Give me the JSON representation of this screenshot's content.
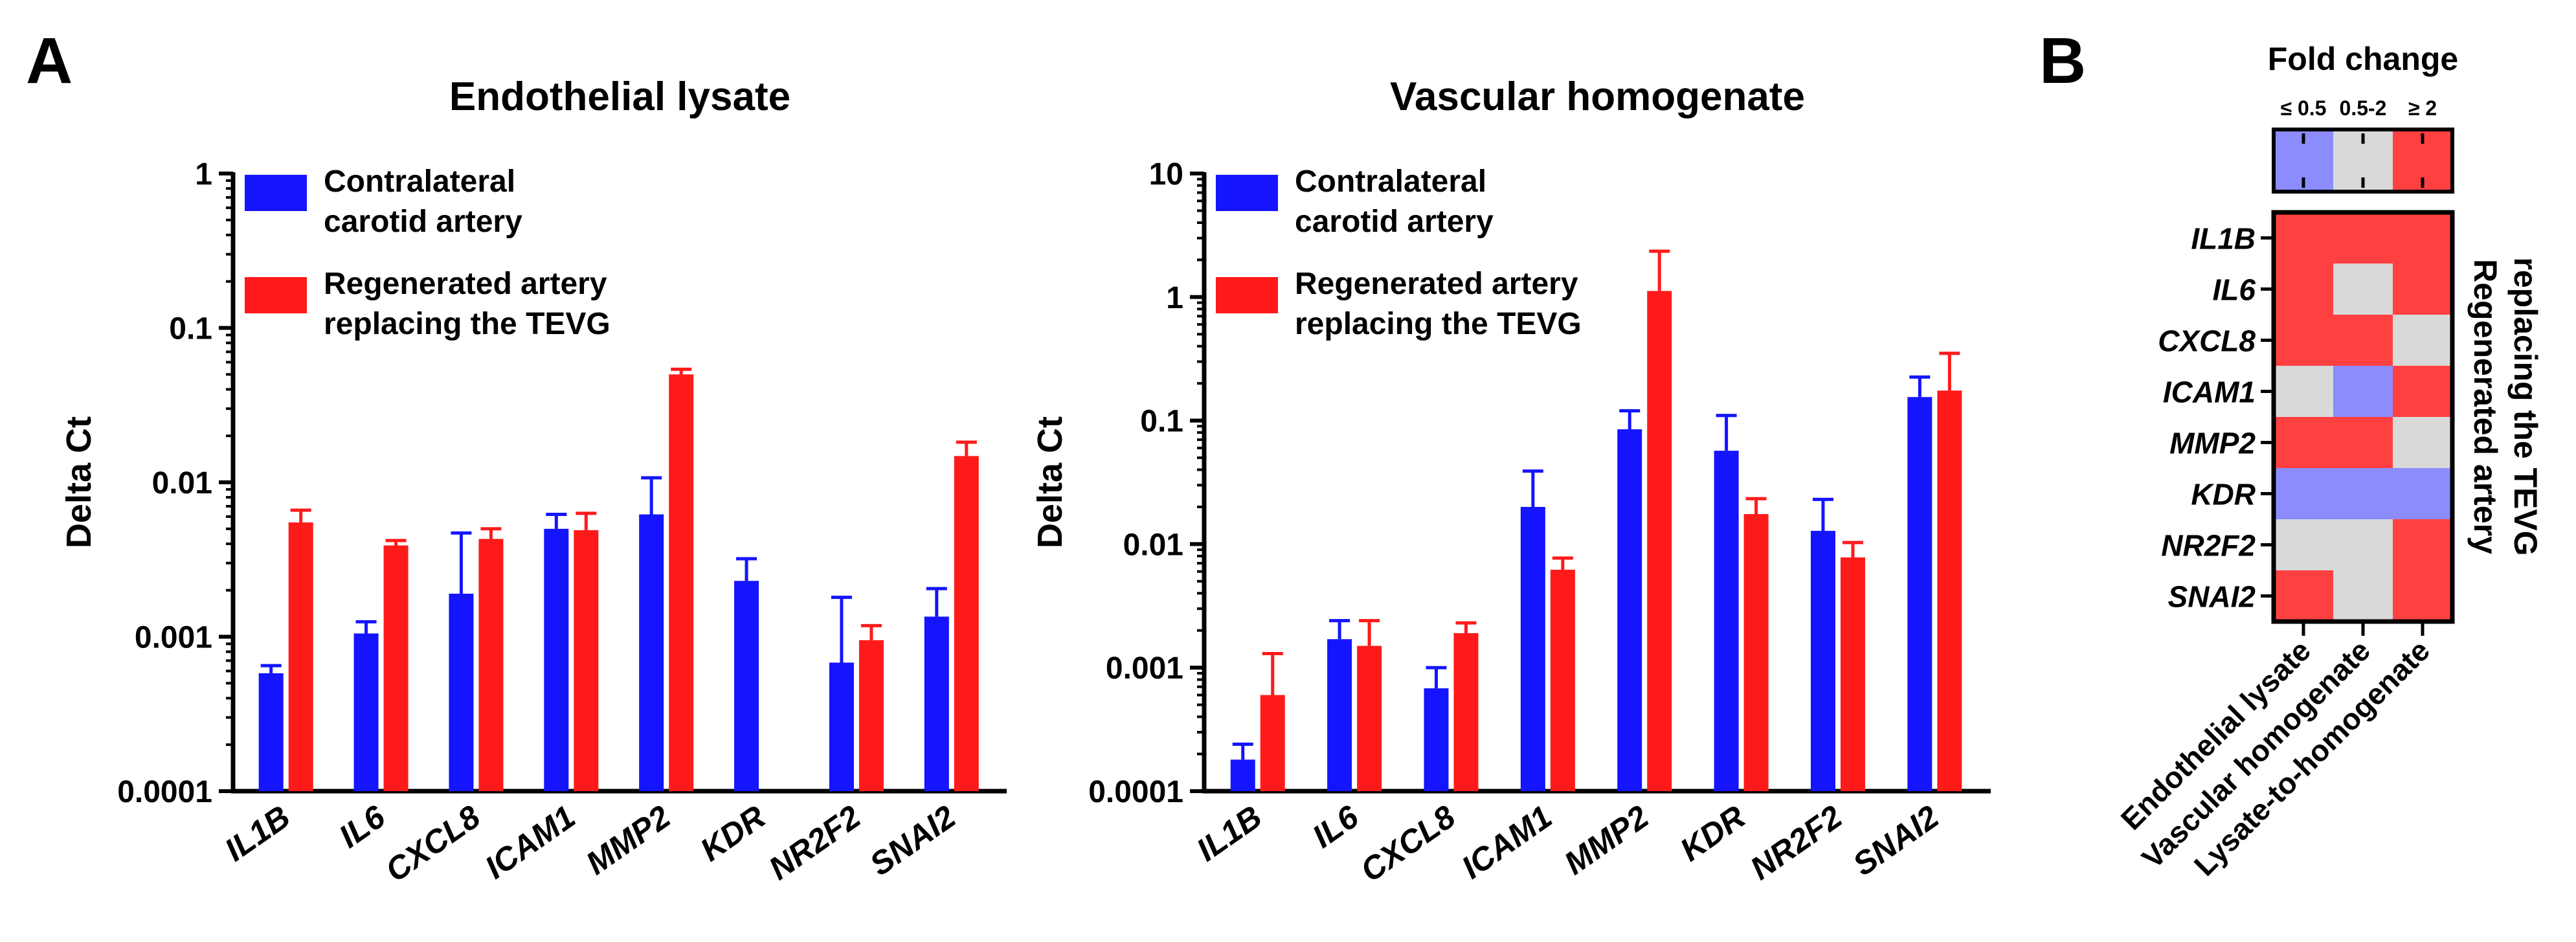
{
  "panel_labels": {
    "a": "A",
    "b": "B"
  },
  "chart_data": [
    {
      "type": "bar",
      "title": "Endothelial lysate",
      "xlabel": "",
      "ylabel": "Delta Ct",
      "yscale": "log",
      "ylim": [
        0.0001,
        1
      ],
      "ytick_labels": [
        "0.0001",
        "0.001",
        "0.01",
        "0.1",
        "1"
      ],
      "categories": [
        "IL1B",
        "IL6",
        "CXCL8",
        "ICAM1",
        "MMP2",
        "KDR",
        "NR2F2",
        "SNAI2"
      ],
      "legend_position": "top-left",
      "series": [
        {
          "name": "Contralateral carotid artery",
          "legend_lines": [
            "Contralateral",
            "carotid artery"
          ],
          "color": "#1414ff",
          "values": [
            0.00058,
            0.00105,
            0.0019,
            0.005,
            0.0062,
            0.0023,
            0.00068,
            0.00135
          ],
          "errors_upper": [
            0.00065,
            0.00125,
            0.0047,
            0.0062,
            0.0107,
            0.0032,
            0.0018,
            0.00205
          ]
        },
        {
          "name": "Regenerated artery replacing the TEVG",
          "legend_lines": [
            "Regenerated artery",
            "replacing the TEVG"
          ],
          "color": "#ff1a1a",
          "values": [
            0.0055,
            0.0039,
            0.0043,
            0.0049,
            0.05,
            null,
            0.00095,
            0.0148
          ],
          "errors_upper": [
            0.0066,
            0.0042,
            0.005,
            0.0063,
            0.054,
            null,
            0.00118,
            0.0182
          ]
        }
      ]
    },
    {
      "type": "bar",
      "title": "Vascular homogenate",
      "xlabel": "",
      "ylabel": "Delta Ct",
      "yscale": "log",
      "ylim": [
        0.0001,
        10
      ],
      "ytick_labels": [
        "0.0001",
        "0.001",
        "0.01",
        "0.1",
        "1",
        "10"
      ],
      "categories": [
        "IL1B",
        "IL6",
        "CXCL8",
        "ICAM1",
        "MMP2",
        "KDR",
        "NR2F2",
        "SNAI2"
      ],
      "legend_position": "top-left",
      "series": [
        {
          "name": "Contralateral carotid artery",
          "legend_lines": [
            "Contralateral",
            "carotid artery"
          ],
          "color": "#1414ff",
          "values": [
            0.00018,
            0.0017,
            0.00068,
            0.02,
            0.085,
            0.057,
            0.0128,
            0.155
          ],
          "errors_upper": [
            0.00024,
            0.0024,
            0.001,
            0.039,
            0.12,
            0.11,
            0.023,
            0.225
          ]
        },
        {
          "name": "Regenerated artery replacing the TEVG",
          "legend_lines": [
            "Regenerated artery",
            "replacing the TEVG"
          ],
          "color": "#ff1a1a",
          "values": [
            0.0006,
            0.0015,
            0.0019,
            0.0062,
            1.12,
            0.0175,
            0.0078,
            0.175
          ],
          "errors_upper": [
            0.0013,
            0.0024,
            0.0023,
            0.0077,
            2.35,
            0.0233,
            0.0103,
            0.35
          ]
        }
      ]
    },
    {
      "type": "heatmap",
      "title": "Fold change",
      "legend_bins": [
        {
          "label": "≤ 0.5",
          "color": "#8c8cff"
        },
        {
          "label": "0.5-2",
          "color": "#d9d9d9"
        },
        {
          "label": "≥ 2",
          "color": "#ff4040"
        }
      ],
      "rows": [
        "IL1B",
        "IL6",
        "CXCL8",
        "ICAM1",
        "MMP2",
        "KDR",
        "NR2F2",
        "SNAI2"
      ],
      "columns": [
        "Endothelial lysate",
        "Vascular homogenate",
        "Lysate-to-homogenate"
      ],
      "side_label_lines": [
        "Regenerated artery",
        "replacing the TEVG"
      ],
      "values": [
        [
          "≥ 2",
          "≥ 2",
          "≥ 2"
        ],
        [
          "≥ 2",
          "0.5-2",
          "≥ 2"
        ],
        [
          "≥ 2",
          "≥ 2",
          "0.5-2"
        ],
        [
          "0.5-2",
          "≤ 0.5",
          "≥ 2"
        ],
        [
          "≥ 2",
          "≥ 2",
          "0.5-2"
        ],
        [
          "≤ 0.5",
          "≤ 0.5",
          "≤ 0.5"
        ],
        [
          "0.5-2",
          "0.5-2",
          "≥ 2"
        ],
        [
          "≥ 2",
          "0.5-2",
          "≥ 2"
        ]
      ]
    }
  ]
}
